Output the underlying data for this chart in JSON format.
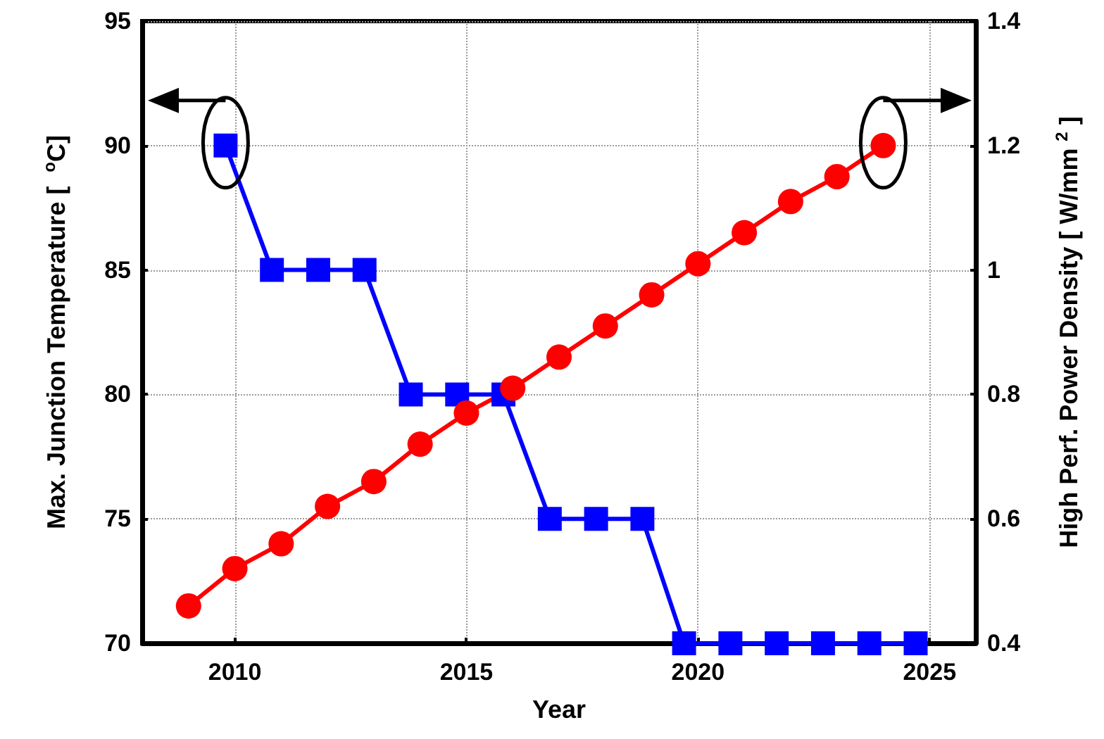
{
  "chart_data": {
    "type": "line",
    "xlabel": "Year",
    "ylabel": "Max. Junction Temperature [  $^{o}$C]",
    "y2label": "High Perf. Power Density [ W/mm $^{2}$ ]",
    "xlim": [
      2008,
      2026
    ],
    "xticks": [
      2010,
      2015,
      2020,
      2025
    ],
    "ylim": [
      70,
      95
    ],
    "yticks": [
      70,
      75,
      80,
      85,
      90,
      95
    ],
    "y2lim": [
      0.4,
      1.4
    ],
    "y2ticks": [
      0.4,
      0.6,
      0.8,
      1,
      1.2,
      1.4
    ],
    "grid": true,
    "line_style": "solid",
    "series": [
      {
        "color": "#0000ff",
        "marker": "square",
        "x": [
          2009.8,
          2010.8,
          2011.8,
          2012.8,
          2013.8,
          2014.8,
          2015.8,
          2016.8,
          2017.8,
          2018.8,
          2019.7,
          2020.7,
          2021.7,
          2022.7,
          2023.7,
          2024.7
        ],
        "values": [
          90,
          85,
          85,
          85,
          80,
          80,
          80,
          75,
          75,
          75,
          70,
          70,
          70,
          70,
          70,
          70
        ]
      },
      {
        "color": "#ff0000",
        "marker": "circle",
        "axis": "y2",
        "x": [
          2009,
          2010,
          2011,
          2012,
          2013,
          2014,
          2015,
          2016,
          2017,
          2018,
          2019,
          2020,
          2021,
          2022,
          2023,
          2024
        ],
        "values": [
          0.46,
          0.52,
          0.56,
          0.62,
          0.66,
          0.72,
          0.77,
          0.81,
          0.86,
          0.91,
          0.96,
          1.01,
          1.06,
          1.11,
          1.15,
          1.2
        ]
      }
    ]
  }
}
